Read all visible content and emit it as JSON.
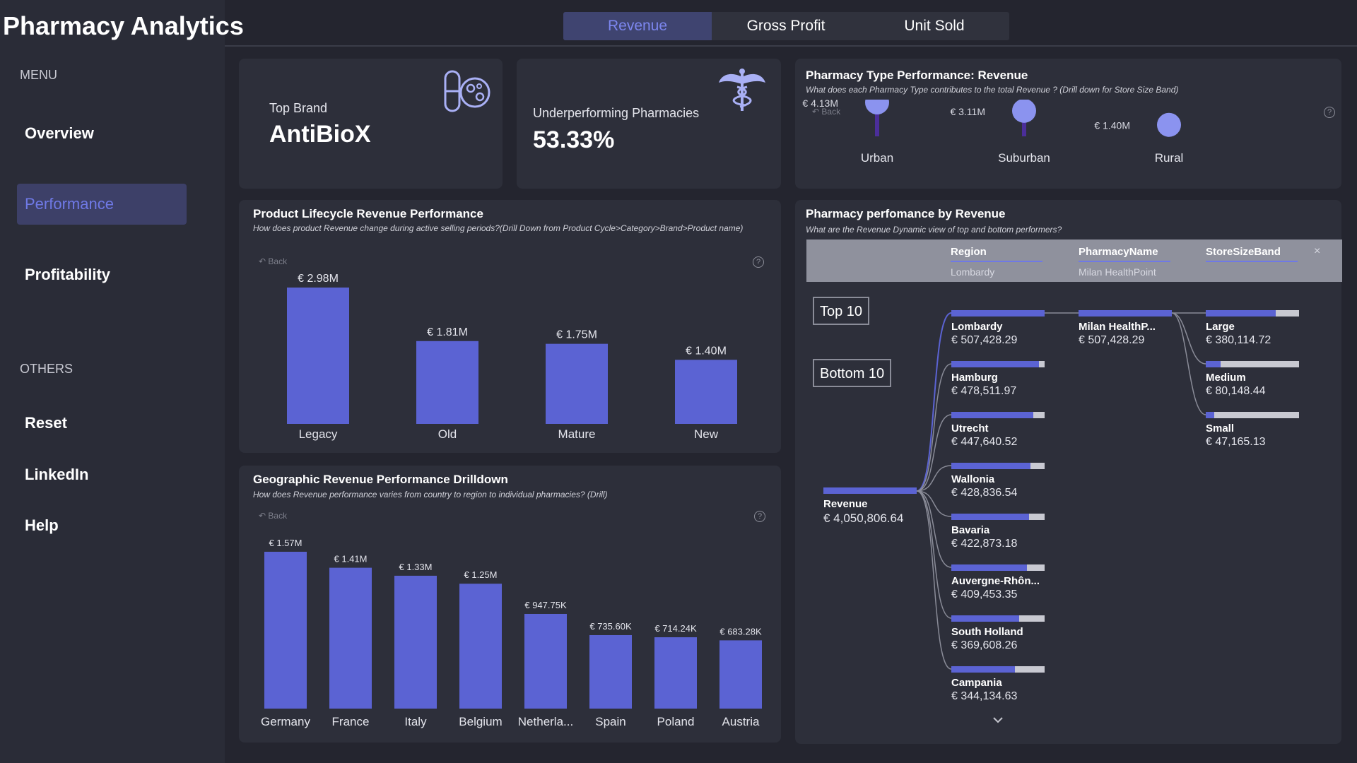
{
  "app": {
    "title": "Pharmacy Analytics"
  },
  "sidebar": {
    "menu_label": "MENU",
    "items": [
      {
        "label": "Overview",
        "active": false
      },
      {
        "label": "Performance",
        "active": true
      },
      {
        "label": "Profitability",
        "active": false
      }
    ],
    "others_label": "OTHERS",
    "others": [
      {
        "label": "Reset"
      },
      {
        "label": "LinkedIn"
      },
      {
        "label": "Help"
      }
    ]
  },
  "tabs": [
    {
      "label": "Revenue",
      "active": true
    },
    {
      "label": "Gross Profit",
      "active": false
    },
    {
      "label": "Unit Sold",
      "active": false
    }
  ],
  "kpis": {
    "top_brand": {
      "label": "Top Brand",
      "value": "AntiBioX",
      "icon": "pill-gear-icon"
    },
    "underperforming": {
      "label": "Underperforming Pharmacies",
      "value": "53.33%",
      "icon": "caduceus-icon"
    }
  },
  "colors": {
    "accent": "#5b63d3",
    "lollipop": "#8b93ef",
    "background": "#24252f",
    "card": "#2d2f3a"
  },
  "pharmacy_type": {
    "title": "Pharmacy Type Performance: Revenue",
    "subtitle": "What does each Pharmacy Type contributes to the total Revenue ? (Drill down for Store Size Band)",
    "back": "Back",
    "help": "?",
    "chart_data": {
      "type": "lollipop",
      "categories": [
        "Urban",
        "Suburban",
        "Rural"
      ],
      "values": [
        4.13,
        3.11,
        1.4
      ],
      "data_labels": [
        "€ 4.13M",
        "€ 3.11M",
        "€ 1.40M"
      ],
      "unit": "€M"
    }
  },
  "lifecycle": {
    "title": "Product Lifecycle Revenue Performance",
    "subtitle": "How does product Revenue change during active selling periods?(Drill Down from Product Cycle>Category>Brand>Product name)",
    "back": "Back",
    "help": "?",
    "chart_data": {
      "type": "bar",
      "categories": [
        "Legacy",
        "Old",
        "Mature",
        "New"
      ],
      "values": [
        2.98,
        1.81,
        1.75,
        1.4
      ],
      "data_labels": [
        "€ 2.98M",
        "€ 1.81M",
        "€ 1.75M",
        "€ 1.40M"
      ],
      "unit": "€M"
    }
  },
  "geo": {
    "title": "Geographic Revenue Performance Drilldown",
    "subtitle": "How does Revenue performance varies from country to region to individual pharmacies? (Drill)",
    "back": "Back",
    "help": "?",
    "chart_data": {
      "type": "bar",
      "categories": [
        "Germany",
        "France",
        "Italy",
        "Belgium",
        "Netherla...",
        "Spain",
        "Poland",
        "Austria"
      ],
      "values": [
        1.57,
        1.41,
        1.33,
        1.25,
        0.94775,
        0.7356,
        0.71424,
        0.68328
      ],
      "data_labels": [
        "€ 1.57M",
        "€ 1.41M",
        "€ 1.33M",
        "€ 1.25M",
        "€ 947.75K",
        "€ 735.60K",
        "€ 714.24K",
        "€ 683.28K"
      ],
      "unit": "€M"
    }
  },
  "decomp": {
    "title": "Pharmacy perfomance by Revenue",
    "subtitle": "What are the Revenue Dynamic view of top and bottom performers?",
    "filters": [
      {
        "head": "Region",
        "value": "Lombardy"
      },
      {
        "head": "PharmacyName",
        "value": "Milan HealthPoint"
      },
      {
        "head": "StoreSizeBand",
        "value": ""
      }
    ],
    "close": "×",
    "top10": "Top 10",
    "bottom10": "Bottom 10",
    "root": {
      "label": "Revenue",
      "value": "€ 4,050,806.64",
      "value_num": 4050806.64
    },
    "regions": [
      {
        "label": "Lombardy",
        "value": "€ 507,428.29",
        "value_num": 507428.29
      },
      {
        "label": "Hamburg",
        "value": "€ 478,511.97",
        "value_num": 478511.97
      },
      {
        "label": "Utrecht",
        "value": "€ 447,640.52",
        "value_num": 447640.52
      },
      {
        "label": "Wallonia",
        "value": "€ 428,836.54",
        "value_num": 428836.54
      },
      {
        "label": "Bavaria",
        "value": "€ 422,873.18",
        "value_num": 422873.18
      },
      {
        "label": "Auvergne-Rhôn...",
        "value": "€ 409,453.35",
        "value_num": 409453.35
      },
      {
        "label": "South Holland",
        "value": "€ 369,608.26",
        "value_num": 369608.26
      },
      {
        "label": "Campania",
        "value": "€ 344,134.63",
        "value_num": 344134.63
      }
    ],
    "pharmacy": {
      "label": "Milan HealthP...",
      "value": "€ 507,428.29",
      "value_num": 507428.29
    },
    "sizes": [
      {
        "label": "Large",
        "value": "€ 380,114.72",
        "value_num": 380114.72
      },
      {
        "label": "Medium",
        "value": "€ 80,148.44",
        "value_num": 80148.44
      },
      {
        "label": "Small",
        "value": "€ 47,165.13",
        "value_num": 47165.13
      }
    ],
    "more_icon": "chevron-down-icon"
  }
}
